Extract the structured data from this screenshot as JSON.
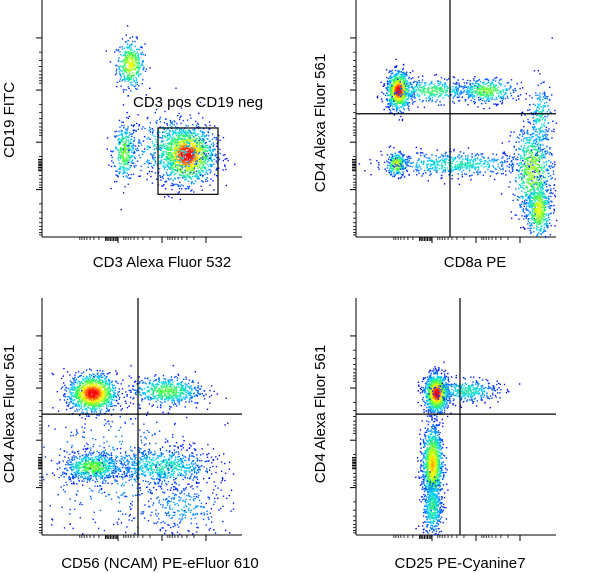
{
  "chart_data": [
    {
      "type": "scatter",
      "subtype": "flow-cytometry-density",
      "xlabel": "CD3 Alexa Fluor 532",
      "ylabel": "CD19 FITC",
      "xlim": [
        0,
        100
      ],
      "ylim": [
        0,
        100
      ],
      "x_scale": "log (unlabelled decade ticks)",
      "y_scale": "log (unlabelled decade ticks)",
      "colormap": [
        "#0000ff",
        "#00d0ff",
        "#40ff40",
        "#ffff00",
        "#ff0000"
      ],
      "populations": [
        {
          "x": 44,
          "y": 73,
          "sx": 3.5,
          "sy": 5,
          "points": 380,
          "peak": 0.7
        },
        {
          "x": 41,
          "y": 36,
          "sx": 3,
          "sy": 6,
          "points": 320,
          "peak": 0.55
        },
        {
          "x": 72,
          "y": 35,
          "sx": 7,
          "sy": 6,
          "points": 1300,
          "peak": 1.0
        },
        {
          "x": 63,
          "y": 38,
          "sx": 10,
          "sy": 7,
          "points": 400,
          "peak": 0.4
        }
      ],
      "gates": [
        {
          "label": "CD3 pos CD19 neg",
          "type": "rectangle",
          "x": [
            58,
            88
          ],
          "y": [
            18,
            46
          ]
        }
      ]
    },
    {
      "type": "scatter",
      "subtype": "flow-cytometry-density",
      "xlabel": "CD8a PE",
      "ylabel": "CD4 Alexa Fluor 561",
      "xlim": [
        0,
        100
      ],
      "ylim": [
        0,
        100
      ],
      "colormap": [
        "#0000ff",
        "#00d0ff",
        "#40ff40",
        "#ffff00",
        "#ff0000"
      ],
      "populations": [
        {
          "x": 21,
          "y": 62,
          "sx": 3,
          "sy": 4,
          "points": 800,
          "peak": 1.0
        },
        {
          "x": 38,
          "y": 62,
          "sx": 10,
          "sy": 2.5,
          "points": 350,
          "peak": 0.45
        },
        {
          "x": 65,
          "y": 62,
          "sx": 7,
          "sy": 2.5,
          "points": 350,
          "peak": 0.55
        },
        {
          "x": 20,
          "y": 31,
          "sx": 2.5,
          "sy": 2.5,
          "points": 250,
          "peak": 0.7
        },
        {
          "x": 50,
          "y": 31,
          "sx": 18,
          "sy": 2.5,
          "points": 550,
          "peak": 0.35
        },
        {
          "x": 88,
          "y": 28,
          "sx": 5,
          "sy": 10,
          "points": 700,
          "peak": 0.6
        },
        {
          "x": 91,
          "y": 12,
          "sx": 3,
          "sy": 6,
          "points": 450,
          "peak": 0.7
        },
        {
          "x": 92,
          "y": 50,
          "sx": 3,
          "sy": 8,
          "points": 200,
          "peak": 0.35
        }
      ],
      "quadrant": {
        "x": 47,
        "y": 52
      }
    },
    {
      "type": "scatter",
      "subtype": "flow-cytometry-density",
      "xlabel": "CD56 (NCAM) PE-eFluor 610",
      "ylabel": "CD4 Alexa Fluor 561",
      "xlim": [
        0,
        100
      ],
      "ylim": [
        0,
        100
      ],
      "colormap": [
        "#0000ff",
        "#00d0ff",
        "#40ff40",
        "#ffff00",
        "#ff0000"
      ],
      "populations": [
        {
          "x": 25,
          "y": 60,
          "sx": 6,
          "sy": 4,
          "points": 1100,
          "peak": 1.0
        },
        {
          "x": 62,
          "y": 61,
          "sx": 9,
          "sy": 3,
          "points": 550,
          "peak": 0.5
        },
        {
          "x": 25,
          "y": 29,
          "sx": 7,
          "sy": 3,
          "points": 600,
          "peak": 0.55
        },
        {
          "x": 60,
          "y": 29,
          "sx": 13,
          "sy": 4,
          "points": 650,
          "peak": 0.35
        },
        {
          "x": 38,
          "y": 28,
          "sx": 22,
          "sy": 14,
          "points": 450,
          "peak": 0.2
        },
        {
          "x": 70,
          "y": 12,
          "sx": 12,
          "sy": 6,
          "points": 250,
          "peak": 0.2
        }
      ],
      "quadrant": {
        "x": 48,
        "y": 51
      }
    },
    {
      "type": "scatter",
      "subtype": "flow-cytometry-density",
      "xlabel": "CD25 PE-Cyanine7",
      "ylabel": "CD4 Alexa Fluor 561",
      "xlim": [
        0,
        100
      ],
      "ylim": [
        0,
        100
      ],
      "colormap": [
        "#0000ff",
        "#00d0ff",
        "#40ff40",
        "#ffff00",
        "#ff0000"
      ],
      "populations": [
        {
          "x": 40,
          "y": 60,
          "sx": 3,
          "sy": 4,
          "points": 1000,
          "peak": 1.0
        },
        {
          "x": 55,
          "y": 61,
          "sx": 8,
          "sy": 2.5,
          "points": 350,
          "peak": 0.35
        },
        {
          "x": 38,
          "y": 30,
          "sx": 2.5,
          "sy": 8,
          "points": 1100,
          "peak": 0.8
        },
        {
          "x": 38,
          "y": 12,
          "sx": 2.5,
          "sy": 6,
          "points": 400,
          "peak": 0.4
        }
      ],
      "quadrant": {
        "x": 52,
        "y": 51
      }
    }
  ]
}
